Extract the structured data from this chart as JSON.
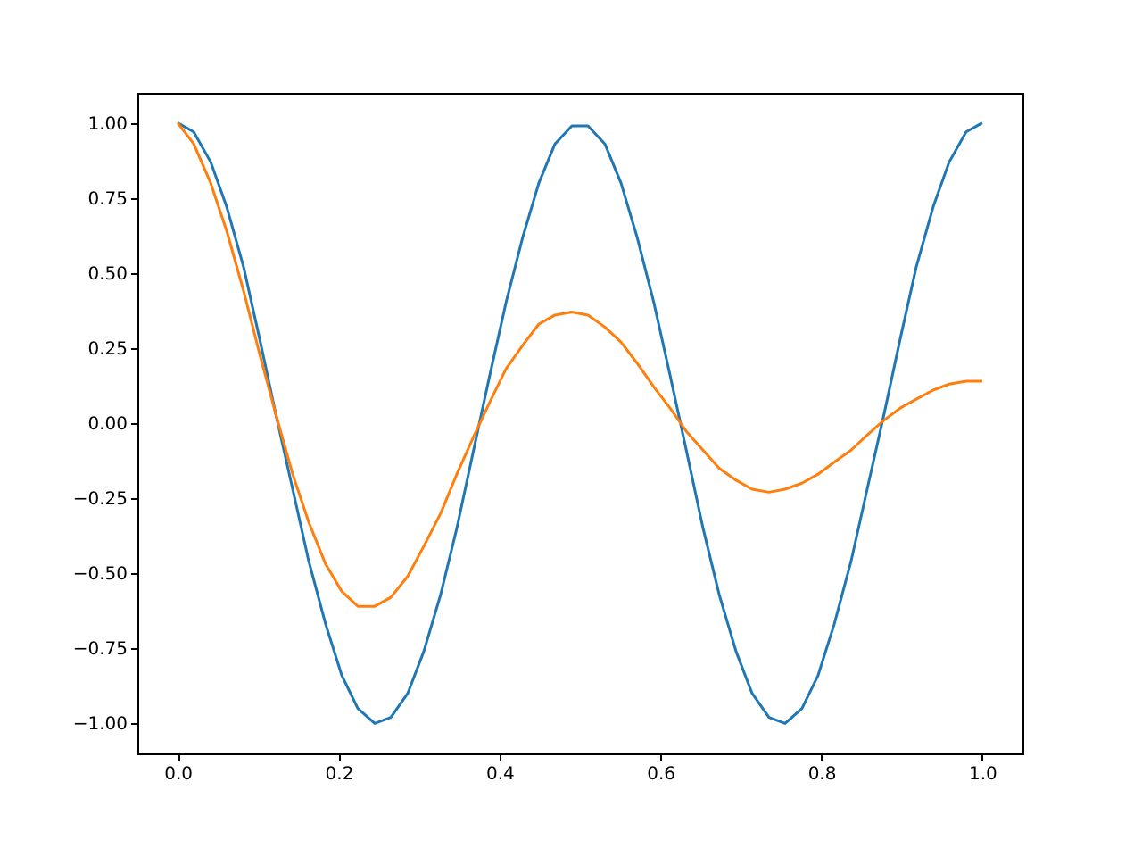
{
  "chart_data": {
    "type": "line",
    "x": [
      0,
      0.02,
      0.041,
      0.061,
      0.082,
      0.102,
      0.122,
      0.143,
      0.163,
      0.184,
      0.204,
      0.224,
      0.245,
      0.265,
      0.286,
      0.306,
      0.327,
      0.347,
      0.367,
      0.388,
      0.408,
      0.429,
      0.449,
      0.469,
      0.49,
      0.51,
      0.531,
      0.551,
      0.571,
      0.592,
      0.612,
      0.633,
      0.653,
      0.673,
      0.694,
      0.714,
      0.735,
      0.755,
      0.776,
      0.796,
      0.816,
      0.837,
      0.857,
      0.878,
      0.898,
      0.918,
      0.939,
      0.959,
      0.98,
      1
    ],
    "series": [
      {
        "color": "#1f77b4",
        "values": [
          1,
          0.97,
          0.87,
          0.72,
          0.52,
          0.28,
          0.03,
          -0.22,
          -0.46,
          -0.67,
          -0.84,
          -0.95,
          -1.0,
          -0.98,
          -0.9,
          -0.76,
          -0.57,
          -0.35,
          -0.1,
          0.16,
          0.4,
          0.62,
          0.8,
          0.93,
          0.99,
          0.99,
          0.93,
          0.8,
          0.62,
          0.4,
          0.16,
          -0.1,
          -0.35,
          -0.57,
          -0.76,
          -0.9,
          -0.98,
          -1.0,
          -0.95,
          -0.84,
          -0.67,
          -0.46,
          -0.22,
          0.03,
          0.28,
          0.52,
          0.72,
          0.87,
          0.97,
          1
        ]
      },
      {
        "color": "#ff7f0e",
        "values": [
          1,
          0.93,
          0.8,
          0.64,
          0.44,
          0.23,
          0.03,
          -0.17,
          -0.33,
          -0.47,
          -0.56,
          -0.61,
          -0.61,
          -0.58,
          -0.51,
          -0.41,
          -0.3,
          -0.17,
          -0.05,
          0.07,
          0.18,
          0.26,
          0.33,
          0.36,
          0.37,
          0.36,
          0.32,
          0.27,
          0.2,
          0.12,
          0.05,
          -0.03,
          -0.09,
          -0.15,
          -0.19,
          -0.22,
          -0.23,
          -0.22,
          -0.2,
          -0.17,
          -0.13,
          -0.09,
          -0.04,
          0.01,
          0.05,
          0.08,
          0.11,
          0.13,
          0.14,
          0.14
        ]
      }
    ],
    "xlim": [
      -0.05,
      1.05
    ],
    "ylim": [
      -1.1,
      1.1
    ],
    "xticks": [
      {
        "value": 0,
        "label": "0.0"
      },
      {
        "value": 0.2,
        "label": "0.2"
      },
      {
        "value": 0.4,
        "label": "0.4"
      },
      {
        "value": 0.6,
        "label": "0.6"
      },
      {
        "value": 0.8,
        "label": "0.8"
      },
      {
        "value": 1,
        "label": "1.0"
      }
    ],
    "yticks": [
      {
        "value": -1,
        "label": "−1.00"
      },
      {
        "value": -0.75,
        "label": "−0.75"
      },
      {
        "value": -0.5,
        "label": "−0.50"
      },
      {
        "value": -0.25,
        "label": "−0.25"
      },
      {
        "value": 0,
        "label": "0.00"
      },
      {
        "value": 0.25,
        "label": "0.25"
      },
      {
        "value": 0.5,
        "label": "0.50"
      },
      {
        "value": 0.75,
        "label": "0.75"
      },
      {
        "value": 1,
        "label": "1.00"
      }
    ],
    "grid": false,
    "line_style": "solid",
    "marker": "none"
  }
}
